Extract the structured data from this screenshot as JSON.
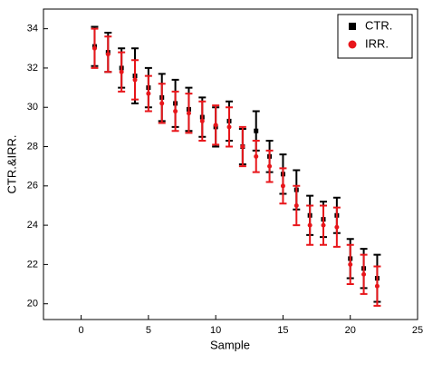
{
  "chart_data": {
    "type": "scatter",
    "x_label": "Sample",
    "y_label": "CTR.&IRR.",
    "x": [
      1,
      2,
      3,
      4,
      5,
      6,
      7,
      8,
      9,
      10,
      11,
      12,
      13,
      14,
      15,
      16,
      17,
      18,
      19,
      20,
      21,
      22
    ],
    "series": [
      {
        "name": "CTR.",
        "color": "#000000",
        "marker": "square",
        "values": [
          33.1,
          32.8,
          32.0,
          31.6,
          31.0,
          30.5,
          30.2,
          29.9,
          29.5,
          29.0,
          29.3,
          28.0,
          28.8,
          27.5,
          26.6,
          25.8,
          24.5,
          24.3,
          24.5,
          22.3,
          21.8,
          21.3
        ],
        "errors": [
          1.0,
          1.0,
          1.0,
          1.4,
          1.0,
          1.2,
          1.2,
          1.1,
          1.0,
          1.0,
          1.0,
          0.9,
          1.0,
          0.8,
          1.0,
          1.0,
          1.0,
          0.9,
          0.9,
          1.0,
          1.0,
          1.2
        ]
      },
      {
        "name": "IRR.",
        "color": "#e8161b",
        "marker": "circle",
        "values": [
          33.0,
          32.7,
          31.8,
          31.4,
          30.7,
          30.2,
          29.8,
          29.7,
          29.3,
          29.1,
          29.0,
          28.0,
          27.5,
          27.0,
          26.0,
          25.0,
          24.0,
          24.0,
          23.9,
          22.0,
          21.5,
          20.9
        ],
        "errors": [
          1.0,
          0.9,
          1.0,
          1.0,
          0.9,
          1.0,
          1.0,
          1.0,
          1.0,
          1.0,
          1.0,
          1.0,
          0.8,
          0.8,
          0.9,
          1.0,
          1.0,
          1.0,
          1.0,
          1.0,
          1.0,
          1.0
        ]
      }
    ],
    "xlim": [
      -2.8,
      25
    ],
    "xticks": [
      0,
      5,
      10,
      15,
      20,
      25
    ],
    "ylim": [
      19.2,
      35
    ],
    "yticks": [
      20,
      22,
      24,
      26,
      28,
      30,
      32,
      34
    ],
    "legend": "top-right"
  }
}
